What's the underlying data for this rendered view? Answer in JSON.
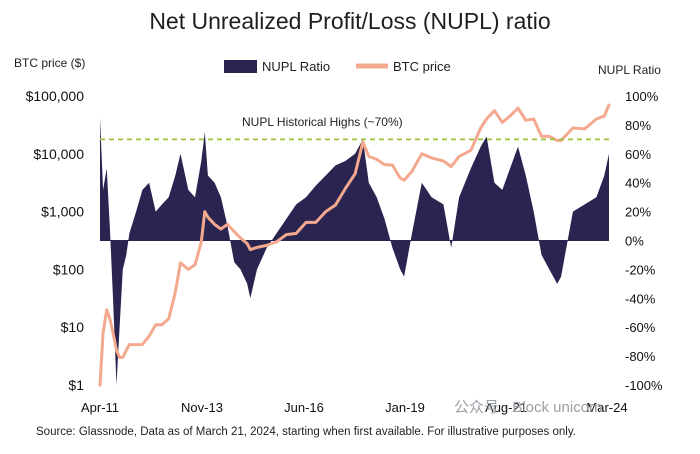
{
  "chart_data": {
    "type": "area",
    "title": "Net Unrealized Profit/Loss (NUPL) ratio",
    "left_axis_title": "BTC price ($)",
    "right_axis_title": "NUPL Ratio",
    "left_ticks": [
      "$100,000",
      "$10,000",
      "$1,000",
      "$100",
      "$10",
      "$1"
    ],
    "right_ticks": [
      "100%",
      "80%",
      "60%",
      "40%",
      "20%",
      "0%",
      "-20%",
      "-40%",
      "-60%",
      "-80%",
      "-100%"
    ],
    "x_ticks": [
      "Apr-11",
      "Nov-13",
      "Jun-16",
      "Jan-19",
      "Aug-21",
      "Mar-24"
    ],
    "left_scale": "log",
    "left_ylim": [
      1,
      100000
    ],
    "right_ylim": [
      -100,
      100
    ],
    "legend": [
      {
        "label": "NUPL Ratio",
        "color": "#2a2550"
      },
      {
        "label": "BTC price",
        "color": "#f4a98f"
      }
    ],
    "annotation": {
      "label": "NUPL Historical Highs (~70%)",
      "value": 70,
      "color": "#9bc43a"
    },
    "series": [
      {
        "name": "NUPL Ratio",
        "color": "#2a2550",
        "x": [
          2011.25,
          2011.33,
          2011.42,
          2011.5,
          2011.58,
          2011.67,
          2011.75,
          2011.83,
          2011.92,
          2012.0,
          2012.17,
          2012.33,
          2012.5,
          2012.67,
          2012.83,
          2013.0,
          2013.17,
          2013.3,
          2013.5,
          2013.67,
          2013.83,
          2013.92,
          2014.0,
          2014.17,
          2014.33,
          2014.5,
          2014.67,
          2014.83,
          2015.0,
          2015.08,
          2015.25,
          2015.5,
          2015.75,
          2016.0,
          2016.25,
          2016.5,
          2016.75,
          2017.0,
          2017.25,
          2017.5,
          2017.75,
          2017.95,
          2018.1,
          2018.3,
          2018.5,
          2018.7,
          2018.9,
          2019.0,
          2019.2,
          2019.45,
          2019.7,
          2020.0,
          2020.2,
          2020.4,
          2020.7,
          2020.95,
          2021.1,
          2021.3,
          2021.5,
          2021.7,
          2021.9,
          2022.1,
          2022.3,
          2022.5,
          2022.7,
          2022.9,
          2023.0,
          2023.3,
          2023.6,
          2023.9,
          2024.1,
          2024.22
        ],
        "values": [
          85,
          35,
          50,
          10,
          -40,
          -100,
          -60,
          -20,
          -10,
          5,
          20,
          35,
          40,
          20,
          25,
          30,
          45,
          60,
          35,
          30,
          55,
          75,
          45,
          40,
          30,
          10,
          -15,
          -20,
          -30,
          -40,
          -20,
          -5,
          5,
          15,
          25,
          30,
          38,
          45,
          52,
          55,
          60,
          70,
          40,
          30,
          15,
          -5,
          -20,
          -25,
          5,
          40,
          30,
          25,
          -5,
          30,
          50,
          65,
          72,
          40,
          35,
          50,
          65,
          45,
          20,
          -10,
          -20,
          -30,
          -25,
          20,
          25,
          30,
          45,
          60
        ]
      },
      {
        "name": "BTC price",
        "color": "#f4a98f",
        "x": [
          2011.25,
          2011.33,
          2011.42,
          2011.5,
          2011.58,
          2011.67,
          2011.75,
          2011.83,
          2011.92,
          2012.0,
          2012.17,
          2012.33,
          2012.5,
          2012.67,
          2012.83,
          2013.0,
          2013.17,
          2013.3,
          2013.5,
          2013.67,
          2013.83,
          2013.92,
          2014.0,
          2014.17,
          2014.33,
          2014.5,
          2014.67,
          2014.83,
          2015.0,
          2015.08,
          2015.25,
          2015.5,
          2015.75,
          2016.0,
          2016.25,
          2016.5,
          2016.75,
          2017.0,
          2017.25,
          2017.5,
          2017.75,
          2017.95,
          2018.1,
          2018.3,
          2018.5,
          2018.7,
          2018.9,
          2019.0,
          2019.2,
          2019.45,
          2019.7,
          2020.0,
          2020.2,
          2020.4,
          2020.7,
          2020.95,
          2021.1,
          2021.3,
          2021.5,
          2021.7,
          2021.9,
          2022.1,
          2022.3,
          2022.5,
          2022.7,
          2022.9,
          2023.0,
          2023.3,
          2023.6,
          2023.9,
          2024.1,
          2024.22
        ],
        "values": [
          1,
          8,
          20,
          14,
          8,
          4,
          3,
          3,
          4,
          5,
          5,
          5,
          7,
          11,
          11,
          14,
          40,
          130,
          100,
          120,
          300,
          1000,
          800,
          600,
          500,
          600,
          450,
          350,
          280,
          220,
          240,
          260,
          300,
          400,
          420,
          650,
          650,
          1000,
          1300,
          2500,
          4500,
          16000,
          9000,
          8000,
          6500,
          6400,
          3800,
          3500,
          5000,
          10000,
          8500,
          7500,
          6000,
          9000,
          11500,
          28000,
          40000,
          56000,
          35000,
          45000,
          62000,
          38000,
          40000,
          20000,
          20000,
          17000,
          17000,
          28000,
          27000,
          40000,
          45000,
          70000
        ]
      }
    ]
  },
  "source": "Source: Glassnode, Data as of March 21, 2024, starting when first available. For illustrative purposes only.",
  "watermark": "公众号 · Block unicorn"
}
